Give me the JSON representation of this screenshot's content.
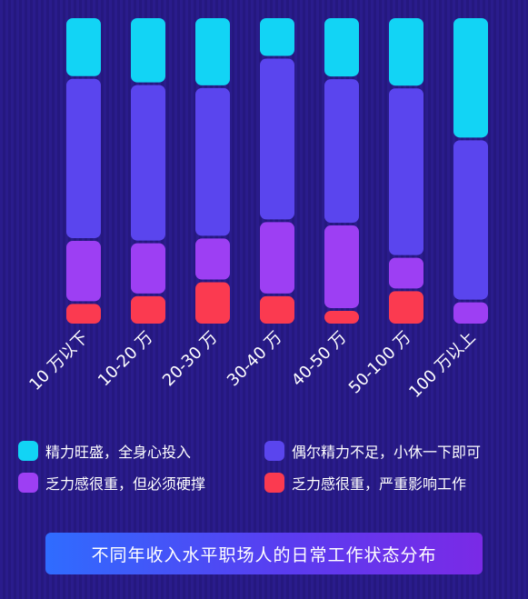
{
  "chart_data": {
    "type": "bar",
    "stacked": true,
    "orientation": "vertical",
    "categories": [
      "10 万以下",
      "10-20 万",
      "20-30 万",
      "30-40 万",
      "40-50 万",
      "50-100 万",
      "100 万以上"
    ],
    "series": [
      {
        "name": "精力旺盛，全身心投入",
        "color": "#12d4f5",
        "values": [
          19.5,
          21.6,
          22.6,
          12.7,
          19.6,
          22.7,
          39.8
        ]
      },
      {
        "name": "偶尔精力不足，小休一下即可",
        "color": "#5a45ee",
        "values": [
          53.6,
          52.3,
          49.7,
          54.1,
          48.3,
          56.1,
          53.1
        ]
      },
      {
        "name": "乏力感很重，但必须硬撑",
        "color": "#9d3ff3",
        "values": [
          20.3,
          16.9,
          13.8,
          24.0,
          27.8,
          10.3,
          7.1
        ]
      },
      {
        "name": "乏力感很重，严重影响工作",
        "color": "#fb3a50",
        "values": [
          6.6,
          9.2,
          13.9,
          9.2,
          4.3,
          10.9,
          0.0
        ]
      }
    ],
    "legend": "bottom",
    "title": "不同年收入水平职场人的日常工作状态分布"
  }
}
